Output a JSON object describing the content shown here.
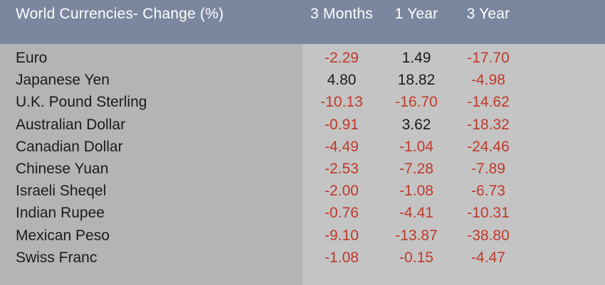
{
  "chart_data": {
    "type": "table",
    "title": "World Currencies- Change (%)",
    "columns": [
      "3 Months",
      "1 Year",
      "3 Year"
    ],
    "rows": [
      {
        "name": "Euro",
        "values": [
          -2.29,
          1.49,
          -17.7
        ]
      },
      {
        "name": "Japanese Yen",
        "values": [
          4.8,
          18.82,
          -4.98
        ]
      },
      {
        "name": "U.K. Pound Sterling",
        "values": [
          -10.13,
          -16.7,
          -14.62
        ]
      },
      {
        "name": "Australian Dollar",
        "values": [
          -0.91,
          3.62,
          -18.32
        ]
      },
      {
        "name": "Canadian Dollar",
        "values": [
          -4.49,
          -1.04,
          -24.46
        ]
      },
      {
        "name": "Chinese Yuan",
        "values": [
          -2.53,
          -7.28,
          -7.89
        ]
      },
      {
        "name": "Israeli Sheqel",
        "values": [
          -2.0,
          -1.08,
          -6.73
        ]
      },
      {
        "name": "Indian Rupee",
        "values": [
          -0.76,
          -4.41,
          -10.31
        ]
      },
      {
        "name": "Mexican Peso",
        "values": [
          -9.1,
          -13.87,
          -38.8
        ]
      },
      {
        "name": "Swiss Franc",
        "values": [
          -1.08,
          -0.15,
          -4.47
        ]
      }
    ]
  },
  "colors": {
    "header_bg": "#7b869f",
    "left_panel_bg": "#b4b4b4",
    "right_panel_bg": "#c4c4c4",
    "negative": "#c0392b",
    "positive": "#1b1b1b"
  }
}
